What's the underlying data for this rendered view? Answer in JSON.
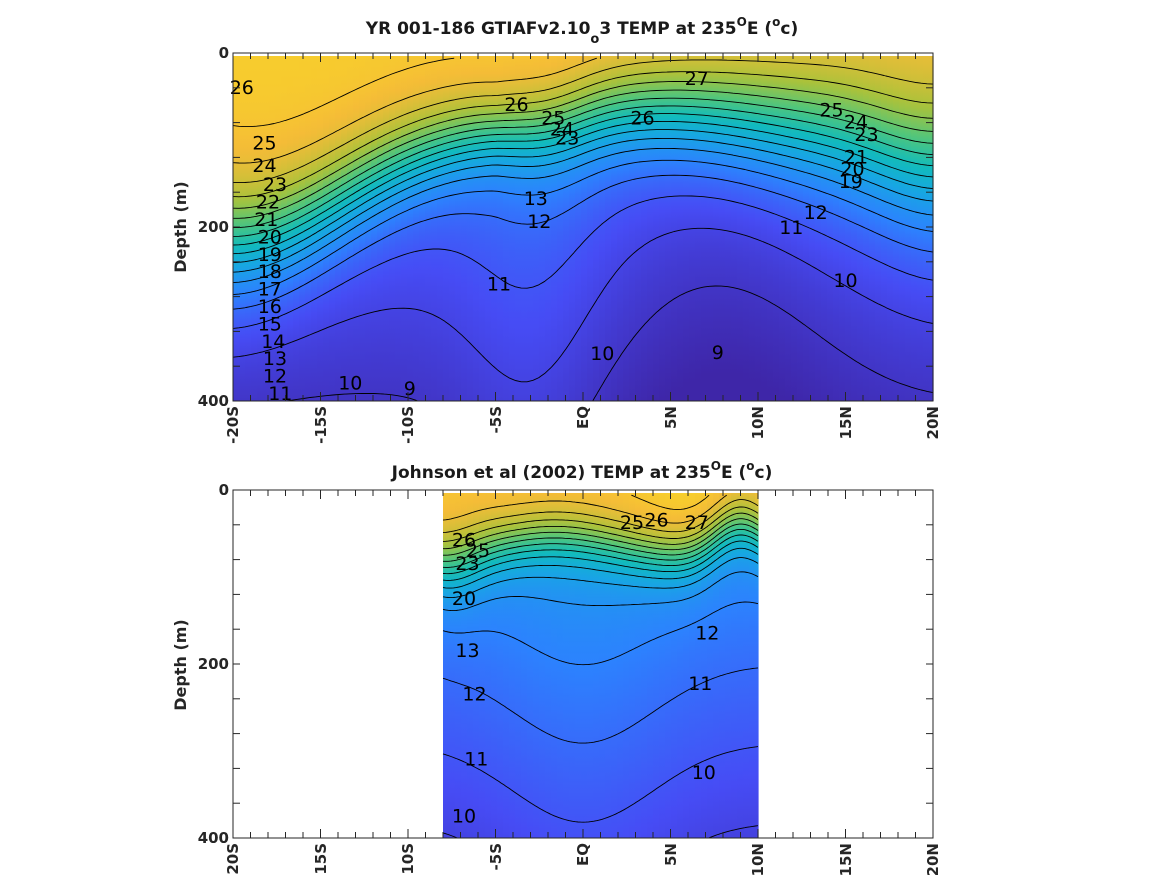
{
  "chart_data": [
    {
      "type": "contour",
      "title": "YR 001-186 GTIAFv2.10_o3 TEMP at 235ᴼE (ᴼc)",
      "title_parts": {
        "pre": "YR 001-186 GTIAFv2.10",
        "sub": "o",
        "mid": "3 TEMP at 235",
        "sup1": "O",
        "post1": "E (",
        "sup2": "o",
        "post2": "c)"
      },
      "ylabel": "Depth (m)",
      "xlabel": "",
      "x_ticks": [
        "-20S",
        "-15S",
        "-10S",
        "-5S",
        "EQ",
        "5N",
        "10N",
        "15N",
        "20N"
      ],
      "y_ticks": [
        "0",
        "200",
        "400"
      ],
      "xlim": [
        -20,
        20
      ],
      "ylim": [
        0,
        400
      ],
      "data_xlim": [
        -20,
        20
      ],
      "colormap": "parula",
      "grid": false,
      "contour_levels": [
        9,
        10,
        11,
        12,
        13,
        14,
        15,
        16,
        17,
        18,
        19,
        20,
        21,
        22,
        23,
        24,
        25,
        26,
        27
      ],
      "contour_labels": [
        {
          "text": "26",
          "x": -19.5,
          "y": 40
        },
        {
          "text": "25",
          "x": -18.2,
          "y": 104
        },
        {
          "text": "24",
          "x": -18.2,
          "y": 130
        },
        {
          "text": "23",
          "x": -17.6,
          "y": 152
        },
        {
          "text": "22",
          "x": -18.0,
          "y": 172
        },
        {
          "text": "21",
          "x": -18.1,
          "y": 192
        },
        {
          "text": "20",
          "x": -17.9,
          "y": 212
        },
        {
          "text": "19",
          "x": -17.9,
          "y": 232
        },
        {
          "text": "18",
          "x": -17.9,
          "y": 252
        },
        {
          "text": "17",
          "x": -17.9,
          "y": 272
        },
        {
          "text": "16",
          "x": -17.9,
          "y": 292
        },
        {
          "text": "15",
          "x": -17.9,
          "y": 312
        },
        {
          "text": "14",
          "x": -17.7,
          "y": 332
        },
        {
          "text": "13",
          "x": -17.6,
          "y": 352
        },
        {
          "text": "12",
          "x": -17.6,
          "y": 372
        },
        {
          "text": "11",
          "x": -17.3,
          "y": 392
        },
        {
          "text": "10",
          "x": -13.3,
          "y": 380
        },
        {
          "text": "9",
          "x": -9.9,
          "y": 386
        },
        {
          "text": "26",
          "x": -3.8,
          "y": 60
        },
        {
          "text": "25",
          "x": -1.7,
          "y": 75
        },
        {
          "text": "24",
          "x": -1.2,
          "y": 88
        },
        {
          "text": "23",
          "x": -0.9,
          "y": 98
        },
        {
          "text": "13",
          "x": -2.7,
          "y": 168
        },
        {
          "text": "12",
          "x": -2.5,
          "y": 194
        },
        {
          "text": "11",
          "x": -4.8,
          "y": 266
        },
        {
          "text": "10",
          "x": 1.1,
          "y": 346
        },
        {
          "text": "26",
          "x": 3.4,
          "y": 75
        },
        {
          "text": "27",
          "x": 6.5,
          "y": 30
        },
        {
          "text": "9",
          "x": 7.7,
          "y": 345
        },
        {
          "text": "11",
          "x": 11.9,
          "y": 201
        },
        {
          "text": "10",
          "x": 15.0,
          "y": 262
        },
        {
          "text": "25",
          "x": 14.2,
          "y": 66
        },
        {
          "text": "24",
          "x": 15.6,
          "y": 80
        },
        {
          "text": "23",
          "x": 16.2,
          "y": 94
        },
        {
          "text": "21",
          "x": 15.6,
          "y": 120
        },
        {
          "text": "20",
          "x": 15.4,
          "y": 134
        },
        {
          "text": "19",
          "x": 15.3,
          "y": 148
        },
        {
          "text": "12",
          "x": 13.3,
          "y": 184
        }
      ]
    },
    {
      "type": "contour",
      "title": "Johnson et al (2002) TEMP at 235ᴼE (ᴼc)",
      "title_parts": {
        "pre": "Johnson et al (2002) TEMP at 235",
        "sup1": "O",
        "post1": "E (",
        "sup2": "o",
        "post2": "c)"
      },
      "ylabel": "Depth (m)",
      "xlabel": "",
      "x_ticks": [
        "-20S",
        "-15S",
        "-10S",
        "-5S",
        "EQ",
        "5N",
        "10N",
        "15N",
        "20N"
      ],
      "y_ticks": [
        "0",
        "200",
        "400"
      ],
      "xlim": [
        -20,
        20
      ],
      "ylim": [
        0,
        400
      ],
      "data_xlim": [
        -8,
        10
      ],
      "colormap": "parula",
      "grid": false,
      "contour_levels": [
        10,
        11,
        12,
        13,
        14,
        15,
        16,
        17,
        18,
        19,
        20,
        21,
        22,
        23,
        24,
        25,
        26,
        27
      ],
      "contour_labels": [
        {
          "text": "26",
          "x": -6.8,
          "y": 58
        },
        {
          "text": "25",
          "x": -6.0,
          "y": 70
        },
        {
          "text": "23",
          "x": -6.6,
          "y": 85
        },
        {
          "text": "20",
          "x": -6.8,
          "y": 125
        },
        {
          "text": "13",
          "x": -6.6,
          "y": 185
        },
        {
          "text": "12",
          "x": -6.2,
          "y": 235
        },
        {
          "text": "11",
          "x": -6.1,
          "y": 310
        },
        {
          "text": "10",
          "x": -6.8,
          "y": 375
        },
        {
          "text": "25",
          "x": 2.8,
          "y": 38
        },
        {
          "text": "26",
          "x": 4.2,
          "y": 35
        },
        {
          "text": "27",
          "x": 6.5,
          "y": 38
        },
        {
          "text": "12",
          "x": 7.1,
          "y": 165
        },
        {
          "text": "11",
          "x": 6.7,
          "y": 223
        },
        {
          "text": "10",
          "x": 6.9,
          "y": 325
        }
      ]
    }
  ]
}
